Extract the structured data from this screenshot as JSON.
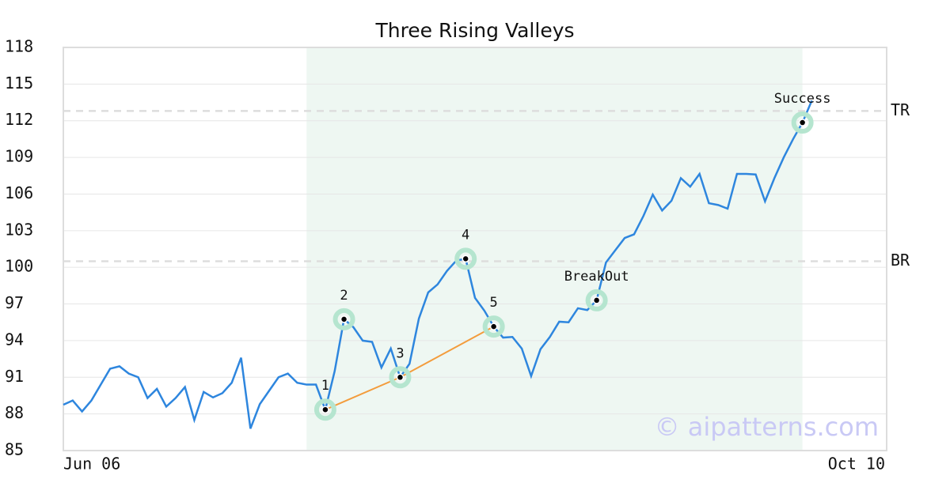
{
  "chart_data": {
    "type": "line",
    "title": "Three Rising Valleys",
    "categories": [
      "Jun 06",
      null,
      null,
      null,
      null,
      null,
      null,
      null,
      null,
      null,
      null,
      null,
      null,
      null,
      null,
      null,
      null,
      null,
      null,
      null,
      null,
      null,
      null,
      null,
      null,
      null,
      null,
      null,
      null,
      null,
      null,
      null,
      null,
      null,
      null,
      null,
      null,
      null,
      null,
      null,
      null,
      null,
      null,
      null,
      null,
      null,
      null,
      null,
      null,
      null,
      null,
      null,
      null,
      null,
      null,
      null,
      null,
      null,
      null,
      null,
      null,
      null,
      null,
      null,
      null,
      null,
      null,
      null,
      null,
      null,
      null,
      null,
      null,
      null,
      null,
      null,
      null,
      null,
      null,
      null,
      null,
      null,
      null,
      null,
      null,
      null,
      null,
      null,
      "Oct 10"
    ],
    "series": [
      {
        "color": "#2e86de",
        "values": [
          88.75,
          89.1,
          88.2,
          89.1,
          90.4,
          91.7,
          91.9,
          91.3,
          91.0,
          89.3,
          90.05,
          88.6,
          89.3,
          90.2,
          87.5,
          89.8,
          89.35,
          89.7,
          90.55,
          92.6,
          86.8,
          88.8,
          89.9,
          91.0,
          91.3,
          90.55,
          90.4,
          90.4,
          88.35,
          91.5,
          95.75,
          95.1,
          94.0,
          93.9,
          91.8,
          93.35,
          91.0,
          92.1,
          95.8,
          97.95,
          98.6,
          99.7,
          100.55,
          100.7,
          97.5,
          96.45,
          95.15,
          94.25,
          94.3,
          93.35,
          91.1,
          93.3,
          94.3,
          95.55,
          95.5,
          96.65,
          96.5,
          97.3,
          100.4,
          101.4,
          102.4,
          102.7,
          104.2,
          105.95,
          104.65,
          105.45,
          107.3,
          106.6,
          107.65,
          105.25,
          105.1,
          104.8,
          107.65,
          107.65,
          107.6,
          105.4,
          107.3,
          109.0,
          110.5,
          111.85,
          113.65,
          null,
          null,
          null,
          null,
          null,
          null,
          null,
          null
        ]
      }
    ],
    "ylim": [
      85,
      118
    ],
    "yticks": [
      85,
      88,
      91,
      94,
      97,
      100,
      103,
      106,
      109,
      112,
      115,
      118
    ],
    "grid": true,
    "highlight": {
      "start": 26,
      "end": 79,
      "color": "#eef7f2"
    },
    "hlines": [
      {
        "value": 112.8,
        "label": "TR"
      },
      {
        "value": 100.5,
        "label": "BR"
      }
    ],
    "trend_line": {
      "indices": [
        28,
        36,
        46
      ],
      "color": "#f39c3c"
    },
    "annotations": [
      {
        "index": 28,
        "label": "1"
      },
      {
        "index": 30,
        "label": "2"
      },
      {
        "index": 36,
        "label": "3"
      },
      {
        "index": 43,
        "label": "4"
      },
      {
        "index": 46,
        "label": "5"
      },
      {
        "index": 57,
        "label": "BreakOut"
      },
      {
        "index": 79,
        "label": "Success"
      }
    ],
    "watermark": "© aipatterns.com"
  }
}
